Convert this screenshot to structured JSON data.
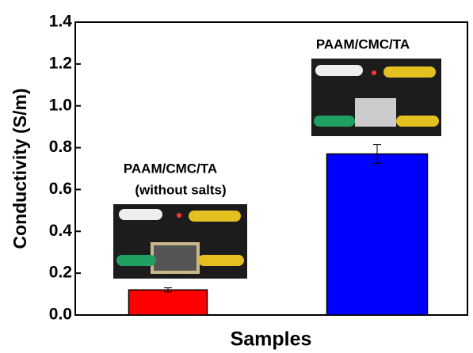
{
  "chart_data": {
    "type": "bar",
    "xlabel": "Samples",
    "ylabel": "Conductivity (S/m)",
    "annotations": [
      "PAAM/CMC/TA",
      "(without salts)",
      "PAAM/CMC/TA"
    ],
    "categories": [
      null,
      null
    ],
    "values": [
      0.12,
      0.77
    ],
    "errors": [
      0.01,
      0.045
    ],
    "colors": [
      "#ff0000",
      "#0000ff"
    ],
    "ylim": [
      0,
      1.4
    ],
    "yticks": [
      {
        "value": 0,
        "label": "0.0"
      },
      {
        "value": 0.2,
        "label": "0.2"
      },
      {
        "value": 0.4,
        "label": "0.4"
      },
      {
        "value": 0.6,
        "label": "0.6"
      },
      {
        "value": 0.8,
        "label": "0.8"
      },
      {
        "value": 1.0,
        "label": "1.0"
      },
      {
        "value": 1.2,
        "label": "1.2"
      },
      {
        "value": 1.4,
        "label": "1.4"
      }
    ]
  }
}
